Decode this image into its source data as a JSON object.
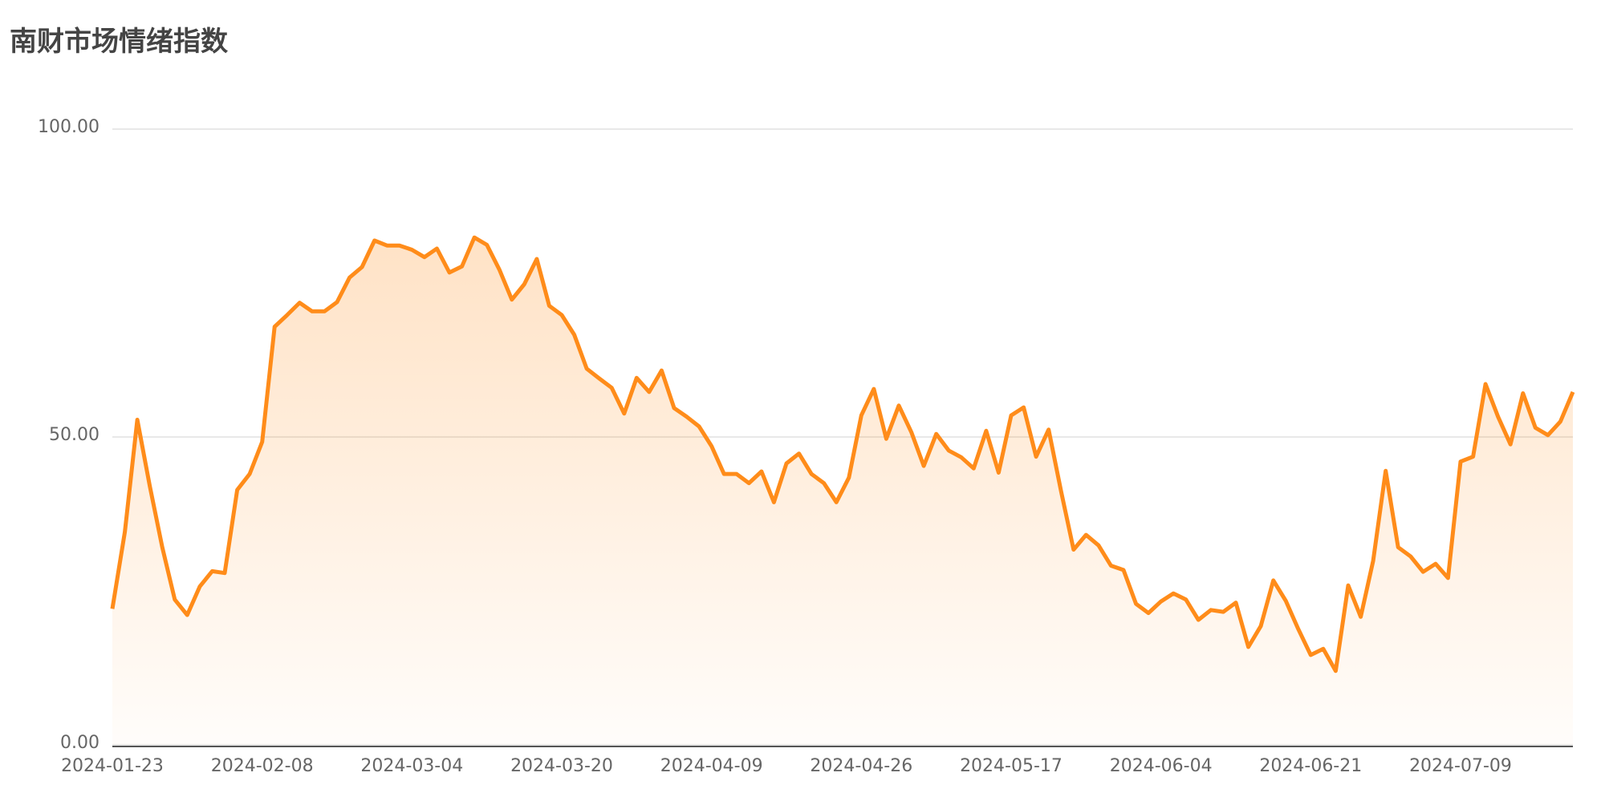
{
  "chart_data": {
    "type": "area-line",
    "title": "南财市场情绪指数",
    "color": "#ff8c1a",
    "categories": [
      "2024-01-23",
      null,
      null,
      null,
      null,
      null,
      null,
      null,
      null,
      null,
      null,
      null,
      "2024-02-08",
      null,
      null,
      null,
      null,
      null,
      null,
      null,
      null,
      null,
      null,
      null,
      "2024-03-04",
      null,
      null,
      null,
      null,
      null,
      null,
      null,
      null,
      null,
      null,
      null,
      "2024-03-20",
      null,
      null,
      null,
      null,
      null,
      null,
      null,
      null,
      null,
      null,
      null,
      "2024-04-09",
      null,
      null,
      null,
      null,
      null,
      null,
      null,
      null,
      null,
      null,
      null,
      "2024-04-26",
      null,
      null,
      null,
      null,
      null,
      null,
      null,
      null,
      null,
      null,
      null,
      "2024-05-17",
      null,
      null,
      null,
      null,
      null,
      null,
      null,
      null,
      null,
      null,
      null,
      "2024-06-04",
      null,
      null,
      null,
      null,
      null,
      null,
      null,
      null,
      null,
      null,
      null,
      "2024-06-21",
      null,
      null,
      null,
      null,
      null,
      null,
      null,
      null,
      null,
      null,
      null,
      "2024-07-09",
      null,
      null,
      null,
      null,
      null,
      null,
      null,
      null,
      null
    ],
    "values": [
      22.1,
      34.6,
      52.8,
      42.0,
      32.1,
      23.6,
      21.1,
      25.7,
      28.2,
      27.9,
      41.4,
      44.0,
      49.2,
      67.9,
      69.8,
      71.8,
      70.4,
      70.4,
      71.9,
      75.9,
      77.6,
      81.9,
      81.1,
      81.1,
      80.4,
      79.2,
      80.6,
      76.7,
      77.7,
      82.4,
      81.2,
      77.2,
      72.3,
      74.8,
      78.9,
      71.3,
      69.8,
      66.6,
      61.1,
      59.5,
      58.0,
      53.8,
      59.6,
      57.3,
      60.8,
      54.7,
      53.3,
      51.7,
      48.5,
      44.0,
      44.0,
      42.5,
      44.4,
      39.4,
      45.7,
      47.3,
      44.0,
      42.5,
      39.4,
      43.4,
      53.5,
      57.8,
      49.7,
      55.1,
      50.8,
      45.3,
      50.5,
      47.8,
      46.7,
      44.9,
      51.0,
      44.2,
      53.5,
      54.8,
      46.8,
      51.2,
      41.2,
      31.7,
      34.1,
      32.4,
      29.1,
      28.4,
      22.9,
      21.4,
      23.3,
      24.6,
      23.6,
      20.3,
      21.9,
      21.6,
      23.1,
      15.9,
      19.3,
      26.7,
      23.4,
      18.8,
      14.6,
      15.6,
      12.0,
      25.9,
      20.8,
      29.9,
      44.5,
      32.1,
      30.6,
      28.1,
      29.4,
      27.1,
      46.0,
      46.8,
      58.6,
      53.3,
      48.8,
      57.1,
      51.5,
      50.3,
      52.5,
      57.3
    ],
    "ylim": [
      0,
      100
    ],
    "yticks": [
      {
        "value": 0,
        "label": "0.00"
      },
      {
        "value": 50,
        "label": "50.00"
      },
      {
        "value": 100,
        "label": "100.00"
      }
    ],
    "grid": true
  }
}
